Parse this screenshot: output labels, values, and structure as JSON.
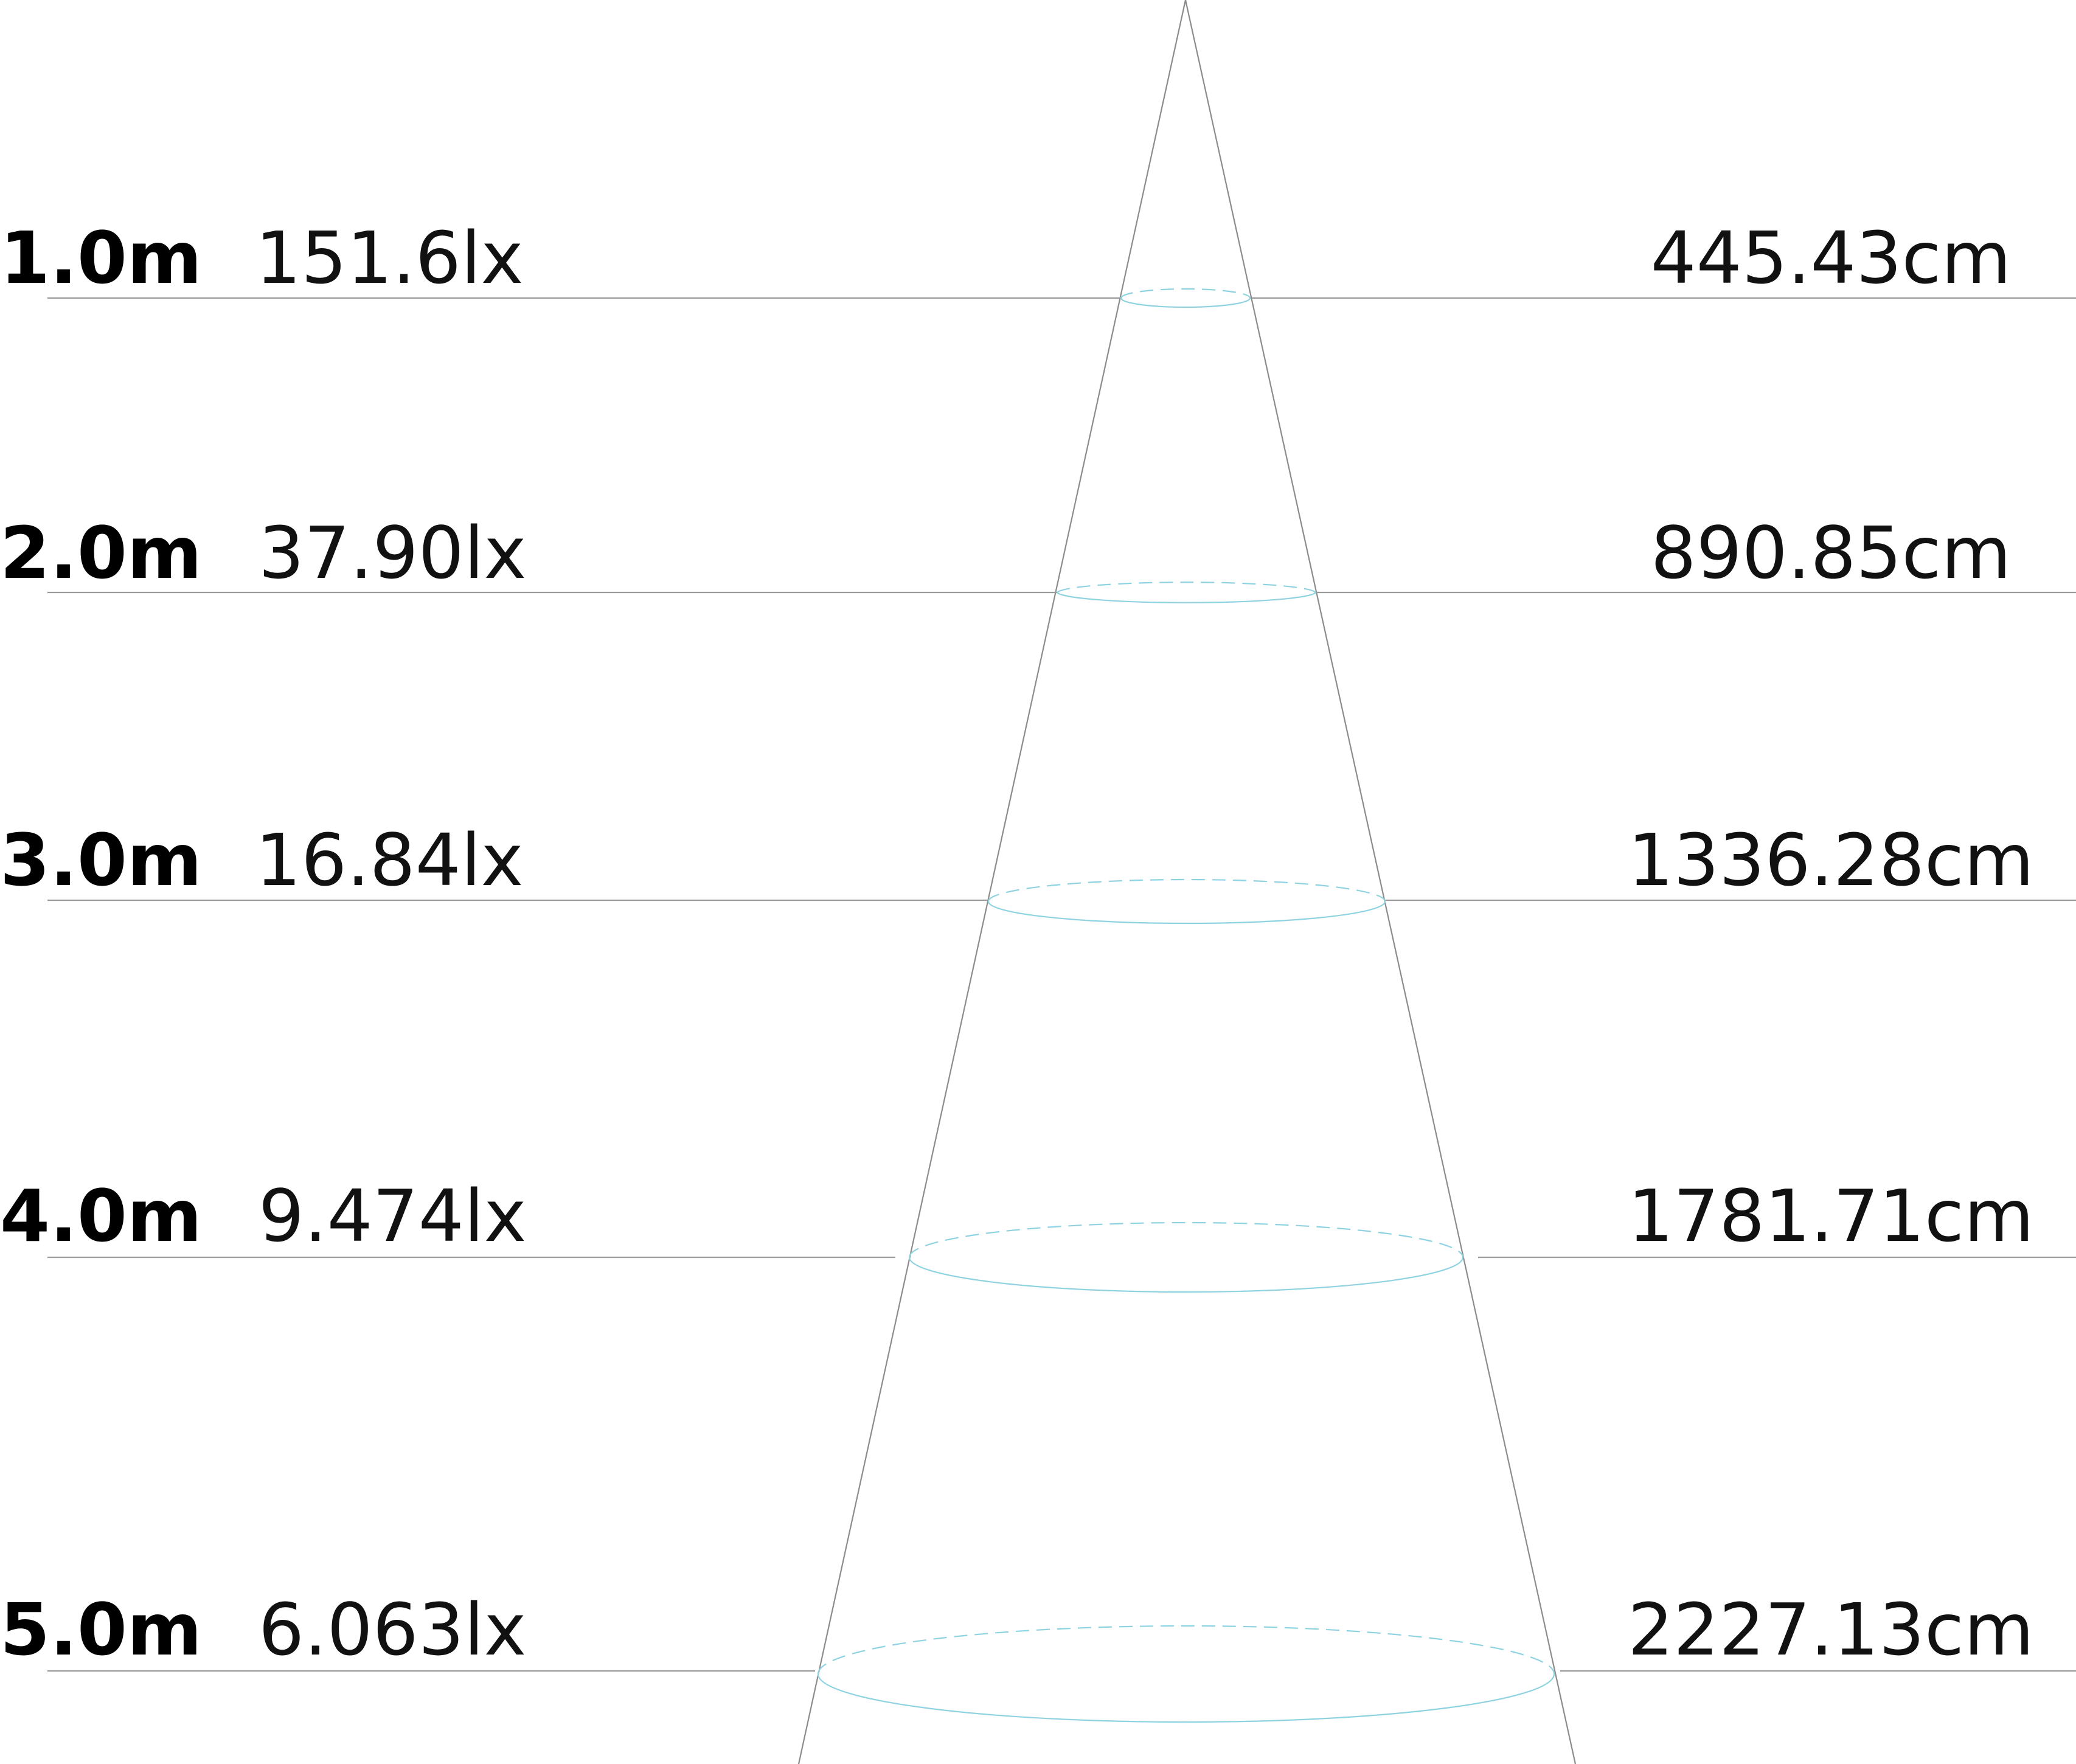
{
  "diagram": {
    "rows": [
      {
        "distance": "1.0m",
        "illuminance": "151.6lx",
        "diameter": "445.43cm"
      },
      {
        "distance": "2.0m",
        "illuminance": "37.90lx",
        "diameter": "890.85cm"
      },
      {
        "distance": "3.0m",
        "illuminance": "16.84lx",
        "diameter": "1336.28cm"
      },
      {
        "distance": "4.0m",
        "illuminance": "9.474lx",
        "diameter": "1781.71cm"
      },
      {
        "distance": "5.0m",
        "illuminance": "6.063lx",
        "diameter": "2227.13cm"
      }
    ],
    "colors": {
      "ellipse": "#8fd3e0",
      "cone": "#8c8c8c",
      "row_line": "#9a9a9a",
      "text": "#000000"
    }
  }
}
